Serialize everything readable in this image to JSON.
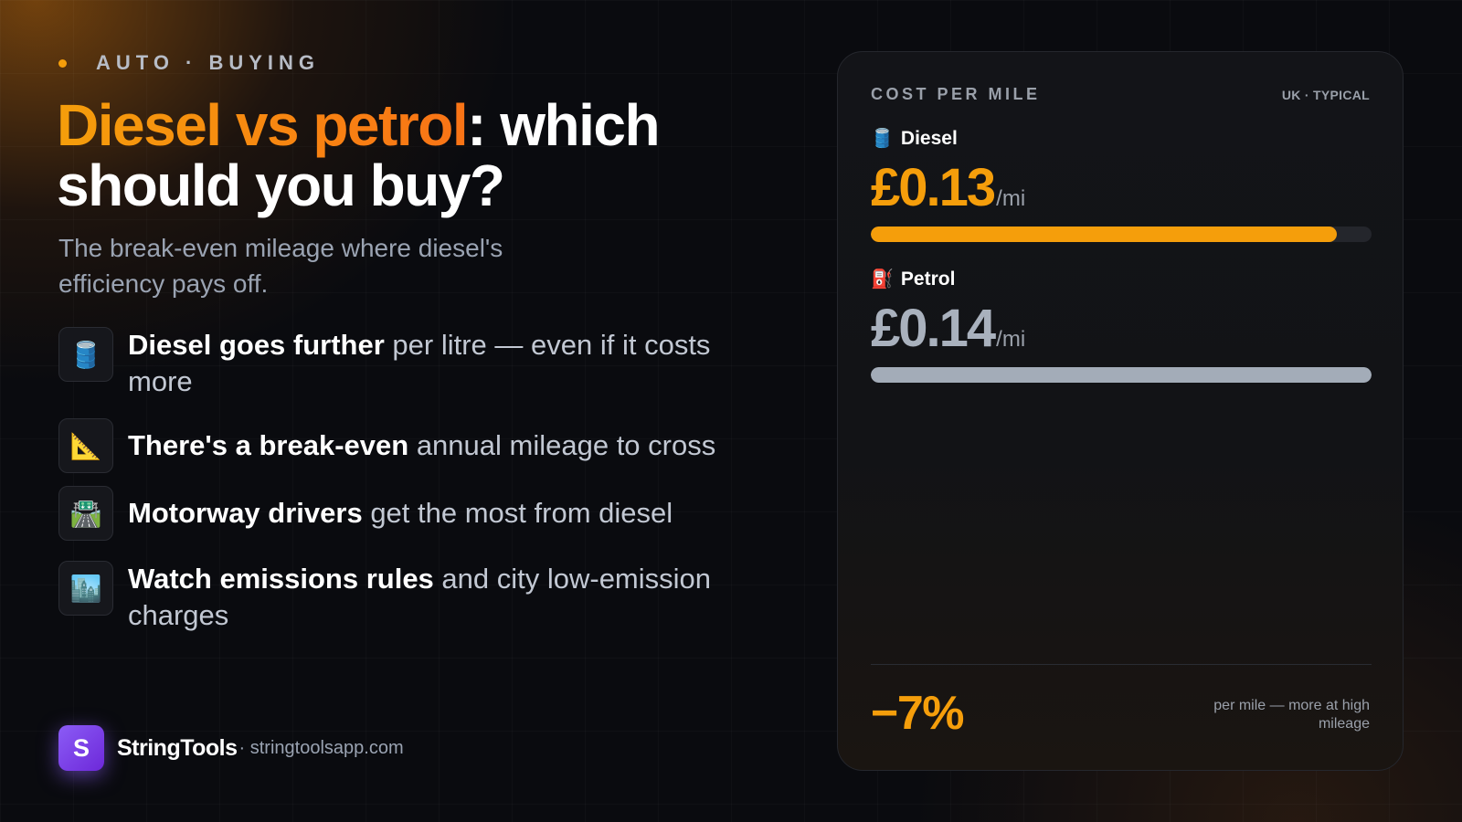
{
  "eyebrow": "AUTO · BUYING",
  "headline": {
    "accent": "Diesel vs petrol",
    "rest": ": which should you buy?"
  },
  "subtitle": "The break-even mileage where diesel's efficiency pays off.",
  "bullets": [
    {
      "icon": "🛢️",
      "icon_name": "oil-drum-icon",
      "strong": "Diesel goes further",
      "rest": " per litre — even if it costs more"
    },
    {
      "icon": "📐",
      "icon_name": "triangle-ruler-icon",
      "strong": "There's a break-even",
      "rest": " annual mileage to cross"
    },
    {
      "icon": "🛣️",
      "icon_name": "motorway-icon",
      "strong": "Motorway drivers",
      "rest": " get the most from diesel"
    },
    {
      "icon": "🏙️",
      "icon_name": "cityscape-icon",
      "strong": "Watch emissions rules",
      "rest": " and city low-emission charges"
    }
  ],
  "brand": {
    "logo_letter": "S",
    "name": "StringTools",
    "url": "· stringtoolsapp.com"
  },
  "card": {
    "title": "COST PER MILE",
    "tag": "UK · TYPICAL",
    "rows": [
      {
        "icon": "🛢️",
        "icon_name": "oil-drum-icon",
        "label": "Diesel",
        "value": "£0.13",
        "unit": "/mi",
        "bar_fraction": 0.93
      },
      {
        "icon": "⛽",
        "icon_name": "fuel-pump-icon",
        "label": "Petrol",
        "value": "£0.14",
        "unit": "/mi",
        "bar_fraction": 1.0
      }
    ],
    "stat": "−7%",
    "stat_note": "per mile — more at high mileage"
  },
  "colors": {
    "accent": "#f59e0b",
    "accent_2": "#f97316",
    "petrol_bar": "#a3acb8",
    "background": "#0a0b0f",
    "brand_purple": "#8b5cf6"
  }
}
